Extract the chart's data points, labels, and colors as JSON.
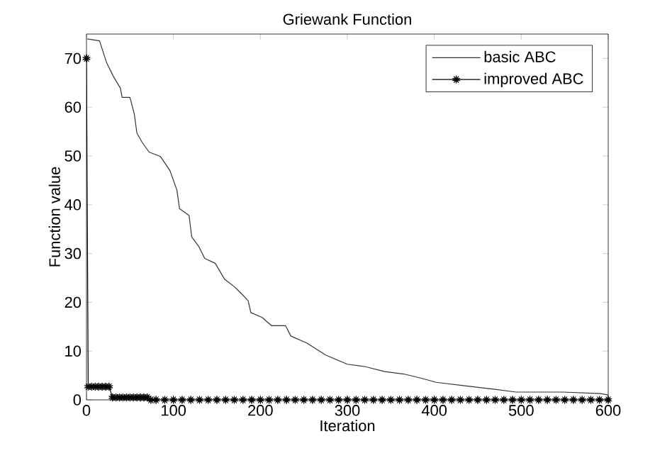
{
  "chart_data": {
    "type": "line",
    "title": "Griewank Function",
    "xlabel": "Iteration",
    "ylabel": "Function value",
    "xlim": [
      0,
      600
    ],
    "xticks": [
      0,
      100,
      200,
      300,
      400,
      500,
      600
    ],
    "ylim": [
      0,
      75
    ],
    "yticks": [
      0,
      10,
      20,
      30,
      40,
      50,
      60,
      70
    ],
    "grid": false,
    "legend": "top right",
    "series": [
      {
        "name": "basic ABC",
        "color": "#333333",
        "marker": "none",
        "line_style": "solid",
        "x": [
          1,
          15,
          23,
          31,
          39,
          41,
          50,
          55,
          58,
          64,
          72,
          85,
          96,
          104,
          107,
          118,
          121,
          129,
          136,
          148,
          159,
          170,
          178,
          186,
          189,
          202,
          213,
          229,
          235,
          254,
          275,
          300,
          321,
          343,
          365,
          386,
          402,
          435,
          468,
          494,
          548,
          591,
          600
        ],
        "values": [
          74,
          73.6,
          69.2,
          66.3,
          63.9,
          62,
          62,
          58.6,
          54.7,
          52.8,
          50.8,
          49.9,
          47,
          43,
          39.2,
          37.8,
          33.4,
          31.5,
          29,
          28,
          24.7,
          23.2,
          21.8,
          20.3,
          17.9,
          16.9,
          15.2,
          15.2,
          13.1,
          11.6,
          9.2,
          7.3,
          6.8,
          5.8,
          5.3,
          4.4,
          3.6,
          2.9,
          2.2,
          1.6,
          1.6,
          1.3,
          1.0
        ]
      },
      {
        "name": "improved ABC",
        "color": "#000000",
        "marker": "star",
        "line_style": "solid",
        "x": [
          0,
          2,
          6,
          10,
          14,
          18,
          22,
          26,
          30,
          34,
          38,
          42,
          46,
          50,
          54,
          58,
          62,
          66,
          70,
          74,
          80,
          90,
          100,
          110,
          120,
          130,
          140,
          150,
          160,
          170,
          180,
          190,
          200,
          210,
          220,
          230,
          240,
          250,
          260,
          270,
          280,
          290,
          300,
          310,
          320,
          330,
          340,
          350,
          360,
          370,
          380,
          390,
          400,
          410,
          420,
          430,
          440,
          450,
          460,
          470,
          480,
          490,
          500,
          510,
          520,
          530,
          540,
          550,
          560,
          570,
          580,
          590,
          600
        ],
        "values": [
          70,
          2.7,
          2.7,
          2.7,
          2.7,
          2.7,
          2.7,
          2.7,
          0.5,
          0.5,
          0.5,
          0.5,
          0.5,
          0.5,
          0.5,
          0.5,
          0.5,
          0.5,
          0.5,
          0,
          0,
          0,
          0,
          0,
          0,
          0,
          0,
          0,
          0,
          0,
          0,
          0,
          0,
          0,
          0,
          0,
          0,
          0,
          0,
          0,
          0,
          0,
          0,
          0,
          0,
          0,
          0,
          0,
          0,
          0,
          0,
          0,
          0,
          0,
          0,
          0,
          0,
          0,
          0,
          0,
          0,
          0,
          0,
          0,
          0,
          0,
          0,
          0,
          0,
          0,
          0,
          0,
          0
        ]
      }
    ]
  }
}
